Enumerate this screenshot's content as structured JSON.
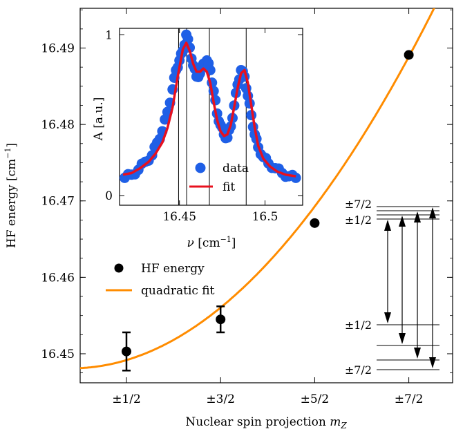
{
  "chart_data": [
    {
      "type": "scatter",
      "xlabel_main": "Nuclear spin projection ",
      "xlabel_italic": "m",
      "xlabel_sub": "Z",
      "ylabel": "HF energy [cm",
      "ylabel_sup": "−1",
      "ylabel_end": "]",
      "categories": [
        "±1/2",
        "±3/2",
        "±5/2",
        "±7/2"
      ],
      "yticks": [
        "16.45",
        "16.46",
        "16.47",
        "16.48",
        "16.49"
      ],
      "ylim": [
        16.4462,
        16.4952
      ],
      "series": [
        {
          "name": "HF energy",
          "color": "#000000",
          "x": [
            1,
            2,
            3,
            4
          ],
          "y": [
            16.4503,
            16.4545,
            16.4671,
            16.4891
          ],
          "yerr": [
            0.0025,
            0.0017,
            0.0004,
            0.0003
          ]
        },
        {
          "name": "quadratic fit",
          "color": "#ff8c00",
          "model": "y = a + b*(x - c)^2",
          "a": 16.4481,
          "b": 0.00318,
          "c": 0.42
        }
      ],
      "level_diagram": {
        "labels": [
          "±7/2",
          "±1/2",
          "±1/2",
          "±7/2"
        ]
      }
    },
    {
      "type": "scatter",
      "xlabel_sym": "ν",
      "xlabel_unit": " [cm",
      "xlabel_sup": "−1",
      "xlabel_end": "]",
      "ylabel": "A [a.u.]",
      "xticks": [
        "16.45",
        "16.5"
      ],
      "yticks": [
        "0",
        "1"
      ],
      "xlim": [
        16.415,
        16.522
      ],
      "ylim": [
        -0.06,
        1.04
      ],
      "vlines": [
        16.4495,
        16.4542,
        16.4675,
        16.489
      ],
      "series": [
        {
          "name": "data",
          "color": "#1f5fe6",
          "x": [
            16.418,
            16.422,
            16.426,
            16.43,
            16.434,
            16.437,
            16.44,
            16.443,
            16.446,
            16.448,
            16.45,
            16.452,
            16.454,
            16.456,
            16.458,
            16.46,
            16.462,
            16.464,
            16.466,
            16.468,
            16.47,
            16.472,
            16.474,
            16.476,
            16.478,
            16.48,
            16.482,
            16.484,
            16.486,
            16.488,
            16.49,
            16.492,
            16.494,
            16.496,
            16.499,
            16.502,
            16.506,
            16.51,
            16.514,
            16.518
          ],
          "y": [
            0.11,
            0.13,
            0.16,
            0.21,
            0.25,
            0.33,
            0.4,
            0.52,
            0.66,
            0.78,
            0.84,
            0.9,
            1.0,
            0.92,
            0.81,
            0.74,
            0.76,
            0.82,
            0.84,
            0.78,
            0.65,
            0.51,
            0.44,
            0.38,
            0.36,
            0.43,
            0.56,
            0.69,
            0.78,
            0.74,
            0.62,
            0.5,
            0.38,
            0.3,
            0.24,
            0.2,
            0.17,
            0.14,
            0.12,
            0.11
          ]
        },
        {
          "name": "fit",
          "color": "#e8101e",
          "x": [
            16.417,
            16.422,
            16.427,
            16.432,
            16.436,
            16.44,
            16.443,
            16.446,
            16.449,
            16.452,
            16.454,
            16.456,
            16.458,
            16.46,
            16.462,
            16.464,
            16.466,
            16.468,
            16.47,
            16.472,
            16.474,
            16.476,
            16.478,
            16.48,
            16.482,
            16.484,
            16.486,
            16.488,
            16.49,
            16.492,
            16.494,
            16.496,
            16.499,
            16.503,
            16.507,
            16.512,
            16.518
          ],
          "y": [
            0.13,
            0.14,
            0.17,
            0.21,
            0.26,
            0.33,
            0.42,
            0.55,
            0.74,
            0.91,
            0.95,
            0.9,
            0.82,
            0.77,
            0.77,
            0.79,
            0.77,
            0.7,
            0.58,
            0.47,
            0.4,
            0.37,
            0.38,
            0.44,
            0.55,
            0.67,
            0.76,
            0.78,
            0.7,
            0.56,
            0.42,
            0.31,
            0.23,
            0.18,
            0.15,
            0.13,
            0.12
          ]
        }
      ]
    }
  ]
}
